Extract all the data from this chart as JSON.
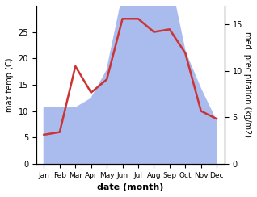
{
  "months": [
    "Jan",
    "Feb",
    "Mar",
    "Apr",
    "May",
    "Jun",
    "Jul",
    "Aug",
    "Sep",
    "Oct",
    "Nov",
    "Dec"
  ],
  "temperature": [
    5.5,
    6.0,
    18.5,
    13.5,
    16.0,
    27.5,
    27.5,
    25.0,
    25.5,
    21.0,
    10.0,
    8.5
  ],
  "precipitation": [
    6.0,
    6.0,
    6.0,
    7.0,
    10.0,
    18.0,
    25.0,
    22.0,
    20.0,
    12.0,
    8.0,
    4.5
  ],
  "temp_color": "#cc3333",
  "precip_color": "#aabbee",
  "ylabel_left": "max temp (C)",
  "ylabel_right": "med. precipitation (kg/m2)",
  "xlabel": "date (month)",
  "ylim_left": [
    0,
    30
  ],
  "ylim_right": [
    0,
    17
  ],
  "left_yticks": [
    0,
    5,
    10,
    15,
    20,
    25
  ],
  "right_yticks": [
    0,
    5,
    10,
    15
  ],
  "bg_color": "#ffffff",
  "temp_linewidth": 1.8,
  "precip_scale_factor": 1.7647
}
